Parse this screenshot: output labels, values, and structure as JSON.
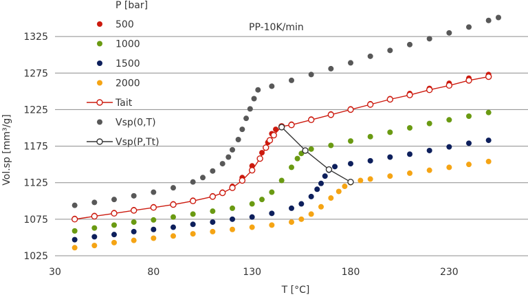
{
  "chart_data": {
    "type": "scatter",
    "title": "",
    "annotation": "PP-10K/min",
    "xlabel": "T [°C]",
    "ylabel": "Vol.sp [mm³/g]",
    "xlim": [
      30,
      270
    ],
    "ylim": [
      1025,
      1375
    ],
    "xticks": [
      30,
      80,
      130,
      180,
      230
    ],
    "yticks": [
      1025,
      1075,
      1125,
      1175,
      1225,
      1275,
      1325
    ],
    "grid": "horizontal",
    "legend": {
      "title": "P [bar]",
      "placement": "top-left"
    },
    "colors": {
      "p500": "#cc1a0e",
      "p1000": "#6a9a12",
      "p1500": "#0d1f5c",
      "p2000": "#f5a414",
      "vsp0": "#585858",
      "tait": "#cc1a0e",
      "transition": "#333333"
    },
    "series": [
      {
        "name": "500",
        "kind": "dots",
        "points": [
          [
            40,
            1076
          ],
          [
            50,
            1080
          ],
          [
            60,
            1084
          ],
          [
            70,
            1088
          ],
          [
            80,
            1092
          ],
          [
            90,
            1096
          ],
          [
            100,
            1101
          ],
          [
            110,
            1107
          ],
          [
            115,
            1112
          ],
          [
            120,
            1120
          ],
          [
            125,
            1132
          ],
          [
            130,
            1148
          ],
          [
            135,
            1166
          ],
          [
            138,
            1180
          ],
          [
            140,
            1192
          ],
          [
            142,
            1198
          ],
          [
            145,
            1202
          ],
          [
            150,
            1205
          ],
          [
            160,
            1212
          ],
          [
            170,
            1219
          ],
          [
            180,
            1226
          ],
          [
            190,
            1233
          ],
          [
            200,
            1240
          ],
          [
            210,
            1247
          ],
          [
            220,
            1254
          ],
          [
            230,
            1261
          ],
          [
            240,
            1268
          ],
          [
            250,
            1273
          ]
        ]
      },
      {
        "name": "1000",
        "kind": "dots",
        "points": [
          [
            40,
            1059
          ],
          [
            50,
            1063
          ],
          [
            60,
            1067
          ],
          [
            70,
            1071
          ],
          [
            80,
            1074
          ],
          [
            90,
            1078
          ],
          [
            100,
            1082
          ],
          [
            110,
            1086
          ],
          [
            120,
            1090
          ],
          [
            130,
            1096
          ],
          [
            135,
            1102
          ],
          [
            140,
            1112
          ],
          [
            145,
            1128
          ],
          [
            150,
            1146
          ],
          [
            153,
            1158
          ],
          [
            155,
            1165
          ],
          [
            157,
            1169
          ],
          [
            160,
            1171
          ],
          [
            170,
            1176
          ],
          [
            180,
            1182
          ],
          [
            190,
            1188
          ],
          [
            200,
            1194
          ],
          [
            210,
            1200
          ],
          [
            220,
            1206
          ],
          [
            230,
            1211
          ],
          [
            240,
            1216
          ],
          [
            250,
            1221
          ]
        ]
      },
      {
        "name": "1500",
        "kind": "dots",
        "points": [
          [
            40,
            1047
          ],
          [
            50,
            1051
          ],
          [
            60,
            1054
          ],
          [
            70,
            1058
          ],
          [
            80,
            1061
          ],
          [
            90,
            1064
          ],
          [
            100,
            1068
          ],
          [
            110,
            1071
          ],
          [
            120,
            1075
          ],
          [
            130,
            1078
          ],
          [
            140,
            1083
          ],
          [
            150,
            1090
          ],
          [
            155,
            1096
          ],
          [
            160,
            1106
          ],
          [
            163,
            1116
          ],
          [
            165,
            1124
          ],
          [
            167,
            1134
          ],
          [
            169,
            1142
          ],
          [
            172,
            1147
          ],
          [
            180,
            1151
          ],
          [
            190,
            1155
          ],
          [
            200,
            1160
          ],
          [
            210,
            1164
          ],
          [
            220,
            1169
          ],
          [
            230,
            1174
          ],
          [
            240,
            1179
          ],
          [
            250,
            1183
          ]
        ]
      },
      {
        "name": "2000",
        "kind": "dots",
        "points": [
          [
            40,
            1036
          ],
          [
            50,
            1039
          ],
          [
            60,
            1043
          ],
          [
            70,
            1046
          ],
          [
            80,
            1049
          ],
          [
            90,
            1052
          ],
          [
            100,
            1055
          ],
          [
            110,
            1058
          ],
          [
            120,
            1061
          ],
          [
            130,
            1064
          ],
          [
            140,
            1067
          ],
          [
            150,
            1071
          ],
          [
            155,
            1075
          ],
          [
            160,
            1082
          ],
          [
            165,
            1092
          ],
          [
            170,
            1104
          ],
          [
            174,
            1113
          ],
          [
            177,
            1120
          ],
          [
            180,
            1125
          ],
          [
            185,
            1128
          ],
          [
            190,
            1130
          ],
          [
            200,
            1134
          ],
          [
            210,
            1138
          ],
          [
            220,
            1142
          ],
          [
            230,
            1146
          ],
          [
            240,
            1150
          ],
          [
            250,
            1154
          ]
        ]
      },
      {
        "name": "Tait",
        "kind": "open-line",
        "points": [
          [
            40,
            1075
          ],
          [
            50,
            1079
          ],
          [
            60,
            1083
          ],
          [
            70,
            1087
          ],
          [
            80,
            1091
          ],
          [
            90,
            1095
          ],
          [
            100,
            1100
          ],
          [
            110,
            1106
          ],
          [
            115,
            1111
          ],
          [
            120,
            1118
          ],
          [
            125,
            1128
          ],
          [
            130,
            1142
          ],
          [
            134,
            1158
          ],
          [
            137,
            1173
          ],
          [
            139,
            1183
          ],
          [
            141,
            1190
          ],
          [
            145,
            1202
          ],
          [
            150,
            1204
          ],
          [
            160,
            1211
          ],
          [
            170,
            1218
          ],
          [
            180,
            1225
          ],
          [
            190,
            1232
          ],
          [
            200,
            1239
          ],
          [
            210,
            1245
          ],
          [
            220,
            1252
          ],
          [
            230,
            1258
          ],
          [
            240,
            1265
          ],
          [
            250,
            1270
          ]
        ]
      },
      {
        "name": "Vsp(0,T)",
        "kind": "dots",
        "points": [
          [
            40,
            1094
          ],
          [
            50,
            1098
          ],
          [
            60,
            1102
          ],
          [
            70,
            1107
          ],
          [
            80,
            1112
          ],
          [
            90,
            1118
          ],
          [
            100,
            1126
          ],
          [
            105,
            1132
          ],
          [
            110,
            1141
          ],
          [
            115,
            1151
          ],
          [
            118,
            1160
          ],
          [
            120,
            1170
          ],
          [
            123,
            1184
          ],
          [
            125,
            1198
          ],
          [
            127,
            1213
          ],
          [
            129,
            1226
          ],
          [
            131,
            1240
          ],
          [
            133,
            1252
          ],
          [
            140,
            1257
          ],
          [
            150,
            1265
          ],
          [
            160,
            1273
          ],
          [
            170,
            1281
          ],
          [
            180,
            1289
          ],
          [
            190,
            1298
          ],
          [
            200,
            1306
          ],
          [
            210,
            1314
          ],
          [
            220,
            1322
          ],
          [
            230,
            1330
          ],
          [
            240,
            1338
          ],
          [
            250,
            1347
          ],
          [
            255,
            1351
          ]
        ]
      },
      {
        "name": "Vsp(P,Tt)",
        "kind": "open-line",
        "points": [
          [
            145,
            1201
          ],
          [
            157,
            1169
          ],
          [
            169,
            1143
          ],
          [
            180,
            1126
          ]
        ]
      }
    ]
  }
}
